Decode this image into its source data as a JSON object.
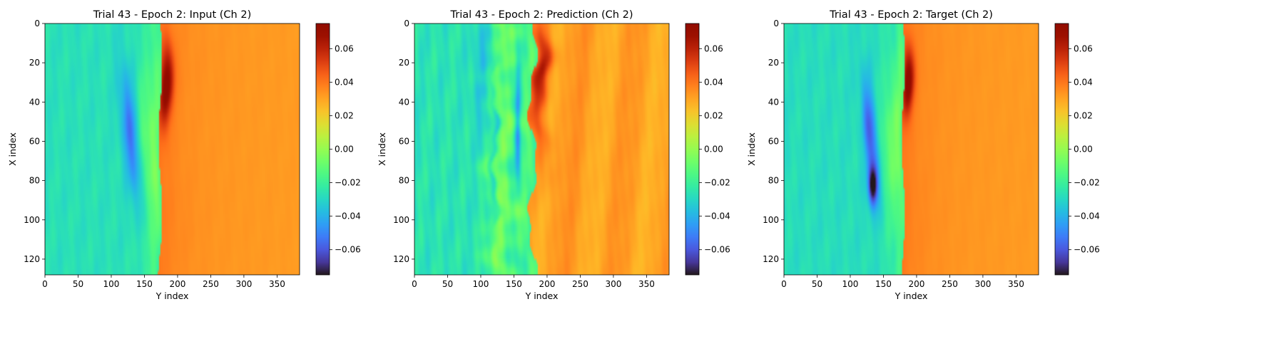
{
  "chart_data": [
    {
      "type": "heatmap",
      "title": "Trial 43 - Epoch 2: Input (Ch 2)",
      "xlabel": "Y index",
      "ylabel": "X index",
      "xlim": [
        0,
        384
      ],
      "ylim": [
        128,
        0
      ],
      "xticks": [
        0,
        50,
        100,
        150,
        200,
        250,
        300,
        350
      ],
      "yticks": [
        0,
        20,
        40,
        60,
        80,
        100,
        120
      ],
      "colormap": "turbo",
      "colorbar": {
        "vmin": -0.075,
        "vmax": 0.075,
        "ticks": [
          "0.06",
          "0.04",
          "0.02",
          "0.00",
          "−0.02",
          "−0.04",
          "−0.06"
        ],
        "tick_values": [
          0.06,
          0.04,
          0.02,
          0.0,
          -0.02,
          -0.04,
          -0.06
        ]
      },
      "field": "input"
    },
    {
      "type": "heatmap",
      "title": "Trial 43 - Epoch 2: Prediction (Ch 2)",
      "xlabel": "Y index",
      "ylabel": "X index",
      "xlim": [
        0,
        384
      ],
      "ylim": [
        128,
        0
      ],
      "xticks": [
        0,
        50,
        100,
        150,
        200,
        250,
        300,
        350
      ],
      "yticks": [
        0,
        20,
        40,
        60,
        80,
        100,
        120
      ],
      "colormap": "turbo",
      "colorbar": {
        "vmin": -0.075,
        "vmax": 0.075,
        "ticks": [
          "0.06",
          "0.04",
          "0.02",
          "0.00",
          "−0.02",
          "−0.04",
          "−0.06"
        ],
        "tick_values": [
          0.06,
          0.04,
          0.02,
          0.0,
          -0.02,
          -0.04,
          -0.06
        ]
      },
      "field": "prediction"
    },
    {
      "type": "heatmap",
      "title": "Trial 43 - Epoch 2: Target (Ch 2)",
      "xlabel": "Y index",
      "ylabel": "X index",
      "xlim": [
        0,
        384
      ],
      "ylim": [
        128,
        0
      ],
      "xticks": [
        0,
        50,
        100,
        150,
        200,
        250,
        300,
        350
      ],
      "yticks": [
        0,
        20,
        40,
        60,
        80,
        100,
        120
      ],
      "colormap": "turbo",
      "colorbar": {
        "vmin": -0.075,
        "vmax": 0.075,
        "ticks": [
          "0.06",
          "0.04",
          "0.02",
          "0.00",
          "−0.02",
          "−0.04",
          "−0.06"
        ],
        "tick_values": [
          0.06,
          0.04,
          0.02,
          0.0,
          -0.02,
          -0.04,
          -0.06
        ]
      },
      "field": "target"
    }
  ]
}
